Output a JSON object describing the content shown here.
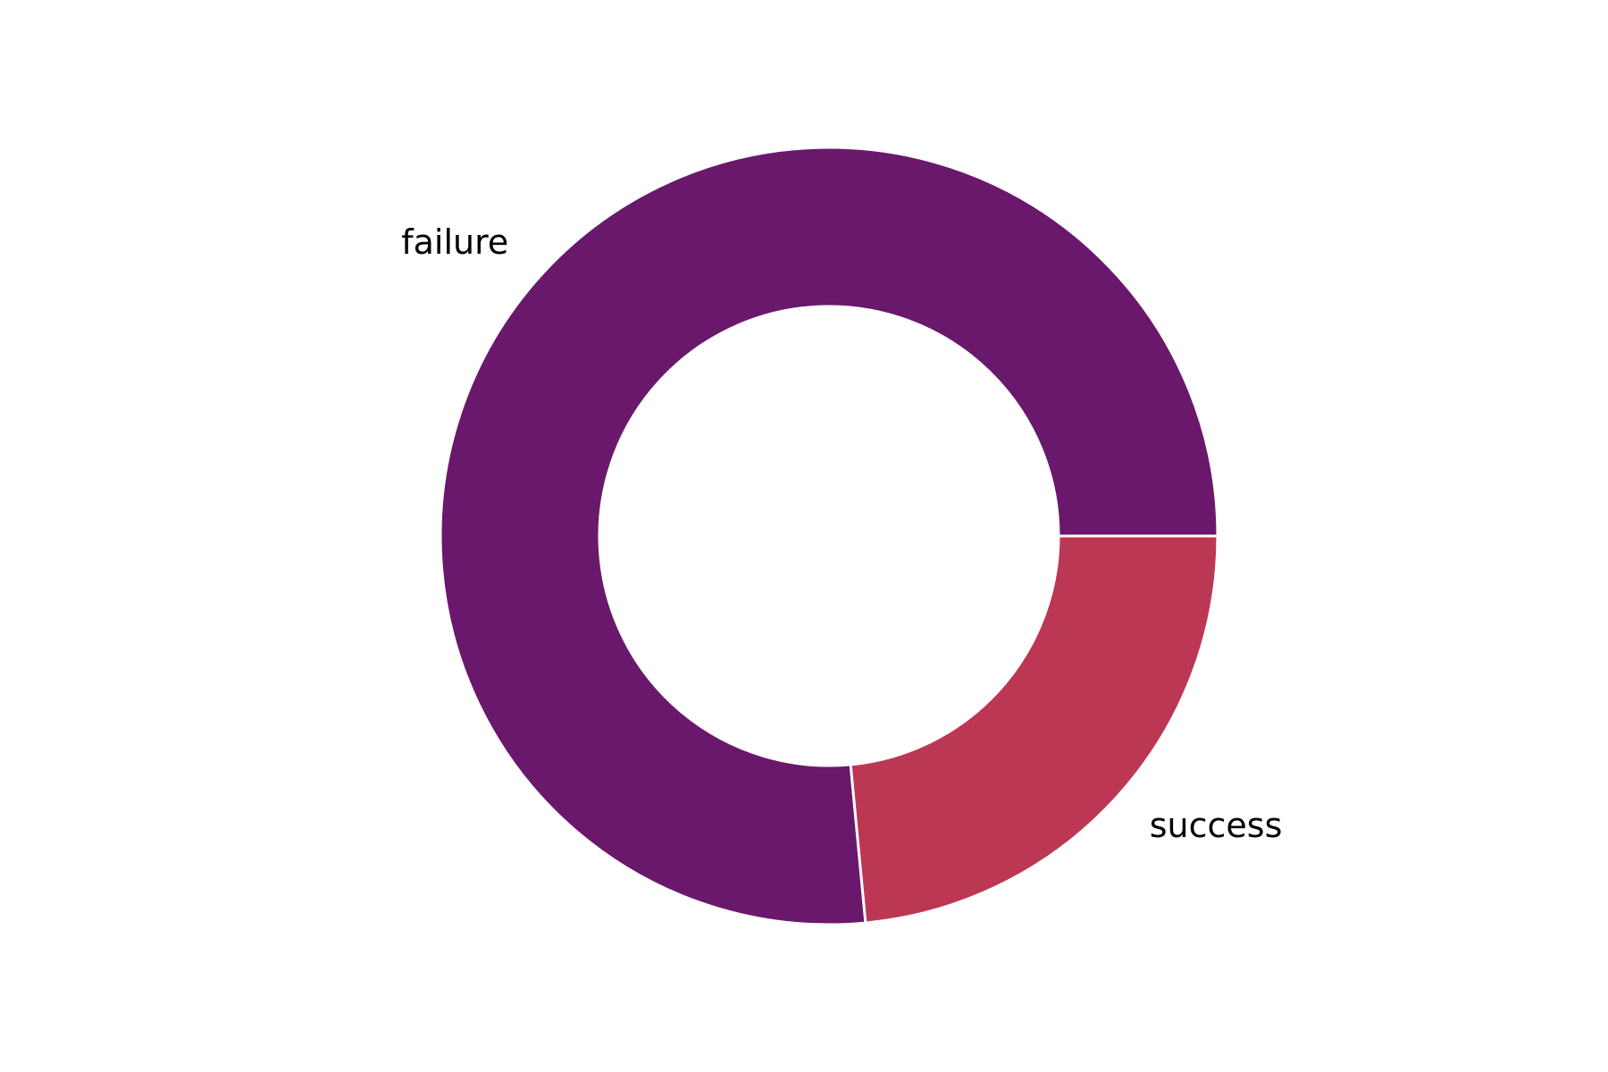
{
  "chart_data": {
    "type": "pie",
    "donut": true,
    "title": "",
    "legend": "none",
    "slices": [
      {
        "label": "failure",
        "value": 76.5,
        "color": "#6a186b"
      },
      {
        "label": "success",
        "value": 23.5,
        "color": "#bc3754"
      }
    ],
    "edge_color": "#ffffff"
  }
}
